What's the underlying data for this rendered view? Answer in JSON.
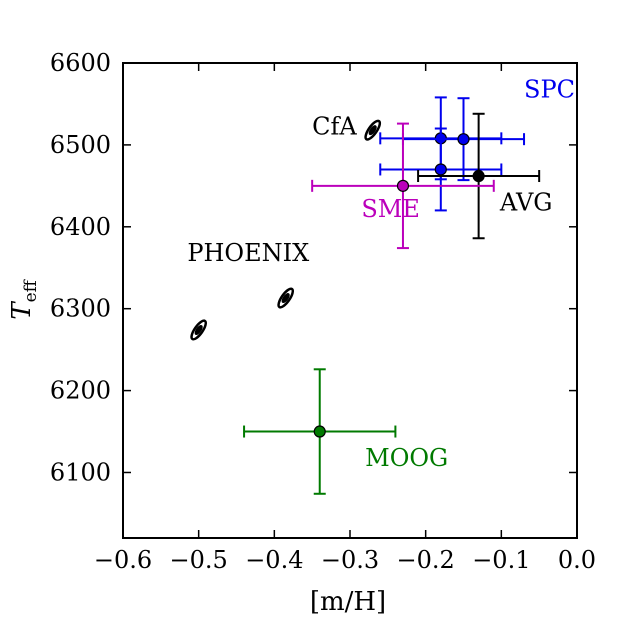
{
  "chart_data": {
    "type": "scatter",
    "title": "",
    "xlabel": "[m/H]",
    "ylabel": "T",
    "ylabel_sub": "eff",
    "xlim": [
      -0.6,
      0.0
    ],
    "ylim": [
      6020,
      6600
    ],
    "x_ticks": [
      -0.6,
      -0.5,
      -0.4,
      -0.3,
      -0.2,
      -0.1,
      0.0
    ],
    "x_tick_labels": [
      "−0.6",
      "−0.5",
      "−0.4",
      "−0.3",
      "−0.2",
      "−0.1",
      "0.0"
    ],
    "y_ticks": [
      6100,
      6200,
      6300,
      6400,
      6500,
      6600
    ],
    "y_tick_labels": [
      "6100",
      "6200",
      "6300",
      "6400",
      "6500",
      "6600"
    ],
    "grid": false,
    "colors": {
      "SPC": "#0000ee",
      "AVG": "#000000",
      "SME": "#bb00bb",
      "MOOG": "#007a00",
      "CfA": "#000000",
      "PHOENIX": "#000000"
    },
    "points": [
      {
        "group": "SPC",
        "x": -0.18,
        "y": 6508,
        "xerr": 0.08,
        "yerr": 50
      },
      {
        "group": "SPC",
        "x": -0.15,
        "y": 6507,
        "xerr": 0.08,
        "yerr": 50
      },
      {
        "group": "SPC",
        "x": -0.18,
        "y": 6470,
        "xerr": 0.08,
        "yerr": 50
      },
      {
        "group": "AVG",
        "x": -0.13,
        "y": 6462,
        "xerr": 0.08,
        "yerr": 76
      },
      {
        "group": "SME",
        "x": -0.23,
        "y": 6450,
        "xerr": 0.12,
        "yerr": 76
      },
      {
        "group": "MOOG",
        "x": -0.34,
        "y": 6150,
        "xerr": 0.1,
        "yerr": 76
      }
    ],
    "contours": [
      {
        "group": "CfA",
        "x": -0.27,
        "y": 6518
      },
      {
        "group": "PHOENIX",
        "x": -0.385,
        "y": 6313
      },
      {
        "group": "PHOENIX",
        "x": -0.5,
        "y": 6274
      }
    ],
    "annotations": [
      {
        "text": "SPC",
        "group": "SPC",
        "x": -0.07,
        "y": 6558
      },
      {
        "text": "CfA",
        "group": "CfA",
        "x": -0.35,
        "y": 6513
      },
      {
        "text": "AVG",
        "group": "AVG",
        "x": -0.102,
        "y": 6420
      },
      {
        "text": "SME",
        "group": "SME",
        "x": -0.285,
        "y": 6412
      },
      {
        "text": "PHOENIX",
        "group": "PHOENIX",
        "x": -0.515,
        "y": 6358
      },
      {
        "text": "MOOG",
        "group": "MOOG",
        "x": -0.28,
        "y": 6108
      }
    ]
  }
}
